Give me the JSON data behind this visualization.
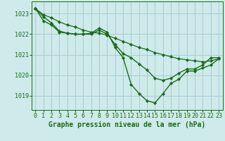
{
  "background_color": "#ceeaea",
  "grid_color": "#aacece",
  "line_color": "#1a6b1a",
  "marker_color": "#1a6b1a",
  "xlabel": "Graphe pression niveau de la mer (hPa)",
  "xlabel_fontsize": 7,
  "tick_fontsize": 6,
  "xlim": [
    -0.5,
    23.5
  ],
  "ylim": [
    1018.3,
    1023.6
  ],
  "yticks": [
    1019,
    1020,
    1021,
    1022,
    1023
  ],
  "xticks": [
    0,
    1,
    2,
    3,
    4,
    5,
    6,
    7,
    8,
    9,
    10,
    11,
    12,
    13,
    14,
    15,
    16,
    17,
    18,
    19,
    20,
    21,
    22,
    23
  ],
  "series": [
    {
      "x": [
        0,
        1,
        2,
        3,
        4,
        5,
        6,
        7,
        8,
        9,
        10,
        11,
        12,
        13,
        14,
        15,
        16,
        17,
        18,
        19,
        20,
        21,
        22,
        23
      ],
      "y": [
        1023.25,
        1022.85,
        1022.55,
        1022.15,
        1022.05,
        1022.0,
        1022.0,
        1022.05,
        1022.3,
        1022.1,
        1021.35,
        1020.85,
        1019.55,
        1019.1,
        1018.75,
        1018.65,
        1019.1,
        1019.6,
        1019.8,
        1020.2,
        1020.2,
        1020.35,
        1020.5,
        1020.8
      ],
      "marker": "D",
      "markersize": 2.2,
      "linewidth": 1.0
    },
    {
      "x": [
        0,
        1,
        2,
        3,
        4,
        5,
        6,
        7,
        8,
        9,
        10,
        11,
        12,
        13,
        14,
        15,
        16,
        17,
        18,
        19,
        20,
        21,
        22,
        23
      ],
      "y": [
        1023.25,
        1022.65,
        1022.45,
        1022.1,
        1022.05,
        1022.0,
        1022.0,
        1022.0,
        1022.2,
        1022.0,
        1021.5,
        1021.05,
        1020.85,
        1020.55,
        1020.25,
        1019.85,
        1019.75,
        1019.85,
        1020.1,
        1020.3,
        1020.3,
        1020.5,
        1020.85,
        1020.85
      ],
      "marker": "D",
      "markersize": 2.2,
      "linewidth": 1.0
    },
    {
      "x": [
        0,
        1,
        2,
        3,
        4,
        5,
        6,
        7,
        8,
        9,
        10,
        11,
        12,
        13,
        14,
        15,
        16,
        17,
        18,
        19,
        20,
        21,
        22,
        23
      ],
      "y": [
        1023.25,
        1022.95,
        1022.8,
        1022.6,
        1022.45,
        1022.35,
        1022.2,
        1022.1,
        1022.05,
        1021.95,
        1021.8,
        1021.65,
        1021.5,
        1021.35,
        1021.25,
        1021.1,
        1021.0,
        1020.9,
        1020.8,
        1020.75,
        1020.7,
        1020.65,
        1020.7,
        1020.8
      ],
      "marker": "D",
      "markersize": 2.2,
      "linewidth": 0.9
    }
  ]
}
